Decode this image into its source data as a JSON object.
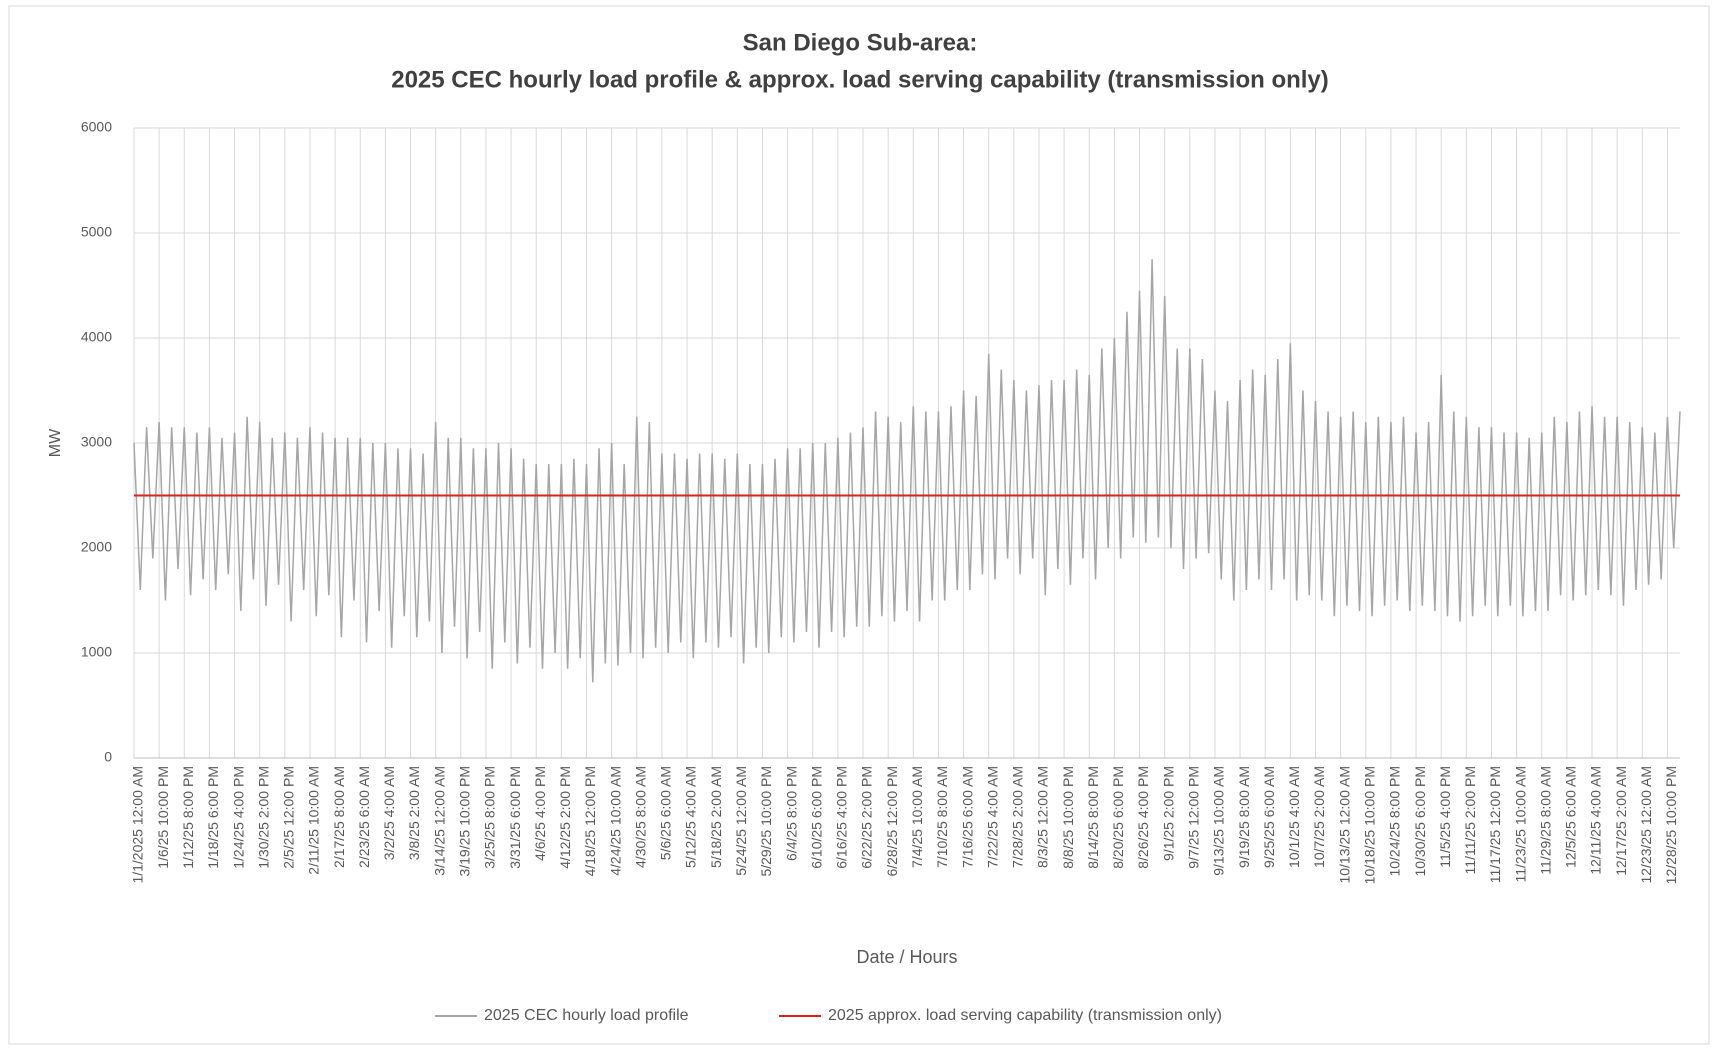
{
  "chart_data": {
    "type": "line",
    "title": "San Diego Sub-area:",
    "subtitle": "2025 CEC hourly load profile & approx. load serving capability (transmission only)",
    "y_label": "MW",
    "x_label": "Date / Hours",
    "x": [
      "1/1/2025 12:00 AM",
      null,
      null,
      null,
      "1/6/25 10:00 PM",
      null,
      null,
      null,
      "1/12/25 8:00 PM",
      null,
      null,
      null,
      "1/18/25 6:00 PM",
      null,
      null,
      null,
      "1/24/25 4:00 PM",
      null,
      null,
      null,
      "1/30/25 2:00 PM",
      null,
      null,
      null,
      "2/5/25 12:00 PM",
      null,
      null,
      null,
      "2/11/25 10:00 AM",
      null,
      null,
      null,
      "2/17/25 8:00 AM",
      null,
      null,
      null,
      "2/23/25 6:00 AM",
      null,
      null,
      null,
      "3/2/25 4:00 AM",
      null,
      null,
      null,
      "3/8/25 2:00 AM",
      null,
      null,
      null,
      "3/14/25 12:00 AM",
      null,
      null,
      null,
      "3/19/25 10:00 PM",
      null,
      null,
      null,
      "3/25/25 8:00 PM",
      null,
      null,
      null,
      "3/31/25 6:00 PM",
      null,
      null,
      null,
      "4/6/25 4:00 PM",
      null,
      null,
      null,
      "4/12/25 2:00 PM",
      null,
      null,
      null,
      "4/18/25 12:00 PM",
      null,
      null,
      null,
      "4/24/25 10:00 AM",
      null,
      null,
      null,
      "4/30/25 8:00 AM",
      null,
      null,
      null,
      "5/6/25 6:00 AM",
      null,
      null,
      null,
      "5/12/25 4:00 AM",
      null,
      null,
      null,
      "5/18/25 2:00 AM",
      null,
      null,
      null,
      "5/24/25 12:00 AM",
      null,
      null,
      null,
      "5/29/25 10:00 PM",
      null,
      null,
      null,
      "6/4/25 8:00 PM",
      null,
      null,
      null,
      "6/10/25 6:00 PM",
      null,
      null,
      null,
      "6/16/25 4:00 PM",
      null,
      null,
      null,
      "6/22/25 2:00 PM",
      null,
      null,
      null,
      "6/28/25 12:00 PM",
      null,
      null,
      null,
      "7/4/25 10:00 AM",
      null,
      null,
      null,
      "7/10/25 8:00 AM",
      null,
      null,
      null,
      "7/16/25 6:00 AM",
      null,
      null,
      null,
      "7/22/25 4:00 AM",
      null,
      null,
      null,
      "7/28/25 2:00 AM",
      null,
      null,
      null,
      "8/3/25 12:00 AM",
      null,
      null,
      null,
      "8/8/25 10:00 PM",
      null,
      null,
      null,
      "8/14/25 8:00 PM",
      null,
      null,
      null,
      "8/20/25 6:00 PM",
      null,
      null,
      null,
      "8/26/25 4:00 PM",
      null,
      null,
      null,
      "9/1/25 2:00 PM",
      null,
      null,
      null,
      "9/7/25 12:00 PM",
      null,
      null,
      null,
      "9/13/25 10:00 AM",
      null,
      null,
      null,
      "9/19/25 8:00 AM",
      null,
      null,
      null,
      "9/25/25 6:00 AM",
      null,
      null,
      null,
      "10/1/25 4:00 AM",
      null,
      null,
      null,
      "10/7/25 2:00 AM",
      null,
      null,
      null,
      "10/13/25 12:00 AM",
      null,
      null,
      null,
      "10/18/25 10:00 PM",
      null,
      null,
      null,
      "10/24/25 8:00 PM",
      null,
      null,
      null,
      "10/30/25 6:00 PM",
      null,
      null,
      null,
      "11/5/25 4:00 PM",
      null,
      null,
      null,
      "11/11/25 2:00 PM",
      null,
      null,
      null,
      "11/17/25 12:00 PM",
      null,
      null,
      null,
      "11/23/25 10:00 AM",
      null,
      null,
      null,
      "11/29/25 8:00 AM",
      null,
      null,
      null,
      "12/5/25 6:00 AM",
      null,
      null,
      null,
      "12/11/25 4:00 AM",
      null,
      null,
      null,
      "12/17/25 2:00 AM",
      null,
      null,
      null,
      "12/23/25 12:00 AM",
      null,
      null,
      null,
      "12/28/25 10:00 PM",
      null,
      null
    ],
    "series": [
      {
        "name": "2025 CEC hourly load profile",
        "color": "#a6a6a6",
        "values": [
          3000,
          1600,
          3150,
          1900,
          3200,
          1500,
          3150,
          1800,
          3150,
          1550,
          3100,
          1700,
          3150,
          1600,
          3050,
          1750,
          3100,
          1400,
          3250,
          1700,
          3200,
          1450,
          3050,
          1650,
          3100,
          1300,
          3050,
          1600,
          3150,
          1350,
          3100,
          1550,
          3050,
          1150,
          3050,
          1500,
          3050,
          1100,
          3000,
          1400,
          3000,
          1050,
          2950,
          1350,
          2950,
          1150,
          2900,
          1300,
          3200,
          1000,
          3050,
          1250,
          3050,
          950,
          2950,
          1200,
          2950,
          850,
          3000,
          1100,
          2950,
          900,
          2850,
          1050,
          2800,
          850,
          2800,
          1000,
          2800,
          850,
          2850,
          950,
          2800,
          720,
          2950,
          900,
          3000,
          880,
          2800,
          1000,
          3250,
          950,
          3200,
          1050,
          2900,
          1000,
          2900,
          1100,
          2850,
          950,
          2900,
          1100,
          2900,
          1050,
          2850,
          1150,
          2900,
          900,
          2800,
          1050,
          2800,
          1000,
          2850,
          1150,
          2950,
          1100,
          2950,
          1200,
          3000,
          1050,
          3000,
          1200,
          3050,
          1150,
          3100,
          1250,
          3150,
          1250,
          3300,
          1350,
          3250,
          1300,
          3200,
          1400,
          3350,
          1300,
          3300,
          1500,
          3300,
          1500,
          3350,
          1600,
          3500,
          1600,
          3450,
          1750,
          3850,
          1700,
          3700,
          1900,
          3600,
          1750,
          3500,
          1900,
          3550,
          1550,
          3600,
          1800,
          3600,
          1650,
          3700,
          1900,
          3650,
          1700,
          3900,
          2000,
          4000,
          1900,
          4250,
          2100,
          4450,
          2050,
          4750,
          2100,
          4400,
          2000,
          3900,
          1800,
          3900,
          1900,
          3800,
          1950,
          3500,
          1700,
          3400,
          1500,
          3600,
          1600,
          3700,
          1700,
          3650,
          1600,
          3800,
          1700,
          3950,
          1500,
          3500,
          1550,
          3400,
          1500,
          3300,
          1350,
          3250,
          1450,
          3300,
          1400,
          3200,
          1350,
          3250,
          1450,
          3200,
          1500,
          3250,
          1400,
          3100,
          1450,
          3200,
          1400,
          3650,
          1350,
          3300,
          1300,
          3250,
          1350,
          3150,
          1450,
          3150,
          1350,
          3100,
          1450,
          3100,
          1350,
          3050,
          1400,
          3100,
          1400,
          3250,
          1550,
          3200,
          1500,
          3300,
          1550,
          3350,
          1600,
          3250,
          1550,
          3250,
          1450,
          3200,
          1600,
          3150,
          1650,
          3100,
          1700,
          3250,
          2000,
          3300
        ]
      }
    ],
    "reference_line": {
      "name": "2025 approx. load serving  capability (transmission only)",
      "color": "#e0201b",
      "value": 2500
    },
    "ylim": [
      0,
      6000
    ],
    "yticks": [
      0,
      1000,
      2000,
      3000,
      4000,
      5000,
      6000
    ],
    "grid": true
  }
}
